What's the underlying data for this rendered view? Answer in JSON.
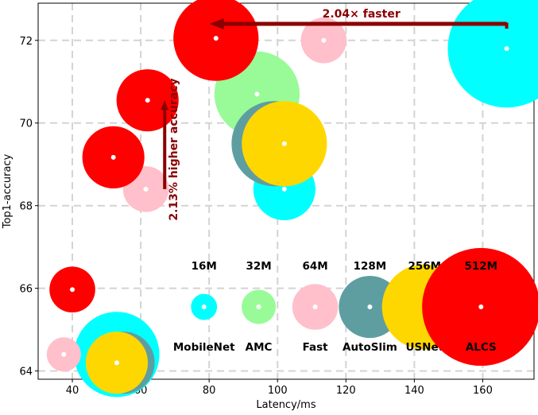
{
  "chart_data": {
    "type": "scatter",
    "title": "",
    "xlabel": "Latency/ms",
    "ylabel": "Top1-accuracy",
    "xlim": [
      30,
      175
    ],
    "ylim": [
      63.8,
      72.9
    ],
    "xticks": [
      40,
      60,
      80,
      100,
      120,
      140,
      160
    ],
    "yticks": [
      64,
      66,
      68,
      70,
      72
    ],
    "grid": true,
    "legend": {
      "placement": "inside-bottom-right",
      "size_labels": [
        "16M",
        "32M",
        "64M",
        "128M",
        "256M",
        "512M"
      ],
      "method_labels": [
        "MobileNet",
        "AMC",
        "Fast",
        "AutoSlim",
        "USNet",
        "ALCS"
      ],
      "legend_x": [
        78.5,
        94.5,
        111,
        127,
        143,
        159.5
      ],
      "legend_y": 65.55,
      "legend_size_mb": [
        16,
        32,
        64,
        128,
        256,
        512
      ]
    },
    "series": [
      {
        "name": "MobileNet",
        "color": "#00ffff",
        "size_mb": [
          512,
          128,
          256
        ],
        "points": [
          [
            167,
            71.8
          ],
          [
            102,
            68.4
          ],
          [
            53,
            64.4
          ]
        ]
      },
      {
        "name": "AMC",
        "color": "#98fb98",
        "size_mb": [
          256
        ],
        "points": [
          [
            94,
            70.7
          ]
        ]
      },
      {
        "name": "Fast",
        "color": "#ffc0cb",
        "size_mb": [
          64,
          64,
          32
        ],
        "points": [
          [
            113.5,
            72.0
          ],
          [
            61.5,
            68.4
          ],
          [
            37.5,
            64.4
          ]
        ]
      },
      {
        "name": "AutoSlim",
        "color": "#5f9ea0",
        "size_mb": [
          256,
          128
        ],
        "points": [
          [
            99,
            69.5
          ],
          [
            55,
            64.2
          ]
        ]
      },
      {
        "name": "USNet",
        "color": "#ffd700",
        "size_mb": [
          256,
          128
        ],
        "points": [
          [
            102,
            69.5
          ],
          [
            53,
            64.2
          ]
        ]
      },
      {
        "name": "ALCS",
        "color": "#ff0000",
        "size_mb": [
          256,
          128,
          128,
          64
        ],
        "points": [
          [
            82,
            72.05
          ],
          [
            62,
            70.55
          ],
          [
            52,
            69.17
          ],
          [
            40,
            65.97
          ]
        ]
      }
    ],
    "annotations": [
      {
        "text": "2.04× faster",
        "from": [
          167,
          72.6
        ],
        "to": [
          82,
          72.6
        ]
      },
      {
        "text": "2.13% higher accuracy",
        "from": [
          67,
          68.4
        ],
        "to": [
          67,
          70.55
        ]
      }
    ]
  }
}
